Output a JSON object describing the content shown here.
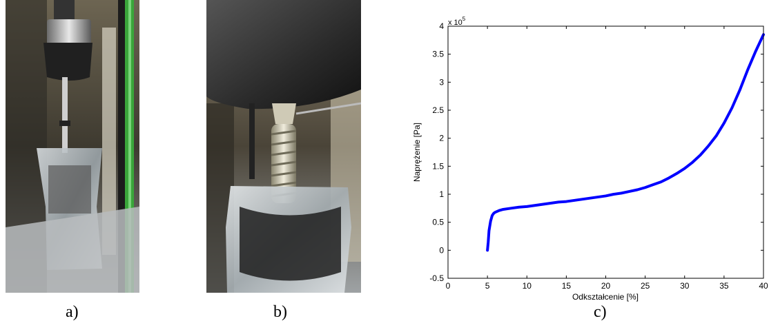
{
  "panels": {
    "a": "a)",
    "b": "b)",
    "c": "c)"
  },
  "photos": [
    {
      "name": "photo-a",
      "depicts": "prosthetic socket mounted in testing machine"
    },
    {
      "name": "photo-b",
      "depicts": "close-up of prosthetic pylon with spring under load"
    }
  ],
  "chart_data": {
    "type": "line",
    "title": "",
    "xlabel": "Odkształcenie [%]",
    "ylabel": "Naprężenie [Pa]",
    "y_multiplier_label": "x 10",
    "y_multiplier_exp": "5",
    "xlim": [
      0,
      40
    ],
    "ylim": [
      -0.5,
      4
    ],
    "x_ticks": [
      "0",
      "5",
      "10",
      "15",
      "20",
      "25",
      "30",
      "35",
      "40"
    ],
    "y_ticks": [
      "-0.5",
      "0",
      "0.5",
      "1",
      "1.5",
      "2",
      "2.5",
      "3",
      "3.5",
      "4"
    ],
    "grid": false,
    "series": [
      {
        "color": "#0000ff",
        "x": [
          5.0,
          5.1,
          5.2,
          5.4,
          5.6,
          5.8,
          6.0,
          6.5,
          7,
          8,
          9,
          10,
          11,
          12,
          13,
          14,
          15,
          16,
          17,
          18,
          19,
          20,
          21,
          22,
          23,
          24,
          25,
          26,
          27,
          28,
          29,
          30,
          31,
          32,
          33,
          34,
          35,
          36,
          37,
          38,
          39,
          40
        ],
        "y": [
          0.0,
          0.15,
          0.35,
          0.52,
          0.62,
          0.66,
          0.68,
          0.71,
          0.73,
          0.75,
          0.77,
          0.78,
          0.8,
          0.82,
          0.84,
          0.86,
          0.87,
          0.89,
          0.91,
          0.93,
          0.95,
          0.97,
          1.0,
          1.02,
          1.05,
          1.08,
          1.12,
          1.17,
          1.22,
          1.29,
          1.37,
          1.46,
          1.57,
          1.7,
          1.86,
          2.04,
          2.27,
          2.54,
          2.86,
          3.22,
          3.55,
          3.85
        ]
      }
    ]
  }
}
